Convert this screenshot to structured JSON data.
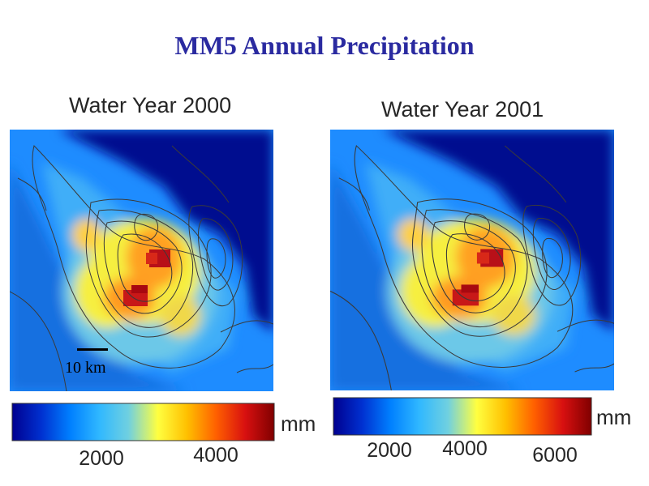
{
  "title": "MM5 Annual Precipitation",
  "colors": {
    "title": "#2a2aa0",
    "colormap": [
      "#00008f",
      "#0030d0",
      "#0080ff",
      "#30b8ff",
      "#70d0e0",
      "#ffff40",
      "#ffc000",
      "#ff6000",
      "#d81010",
      "#800000"
    ]
  },
  "panels": [
    {
      "title": "Water Year 2000",
      "scalebar": "10 km",
      "colorbar": {
        "unit": "mm",
        "ticks": [
          "2000",
          "4000"
        ]
      }
    },
    {
      "title": "Water Year 2001",
      "colorbar": {
        "unit": "mm",
        "ticks": [
          "2000",
          "4000",
          "6000"
        ]
      }
    }
  ]
}
